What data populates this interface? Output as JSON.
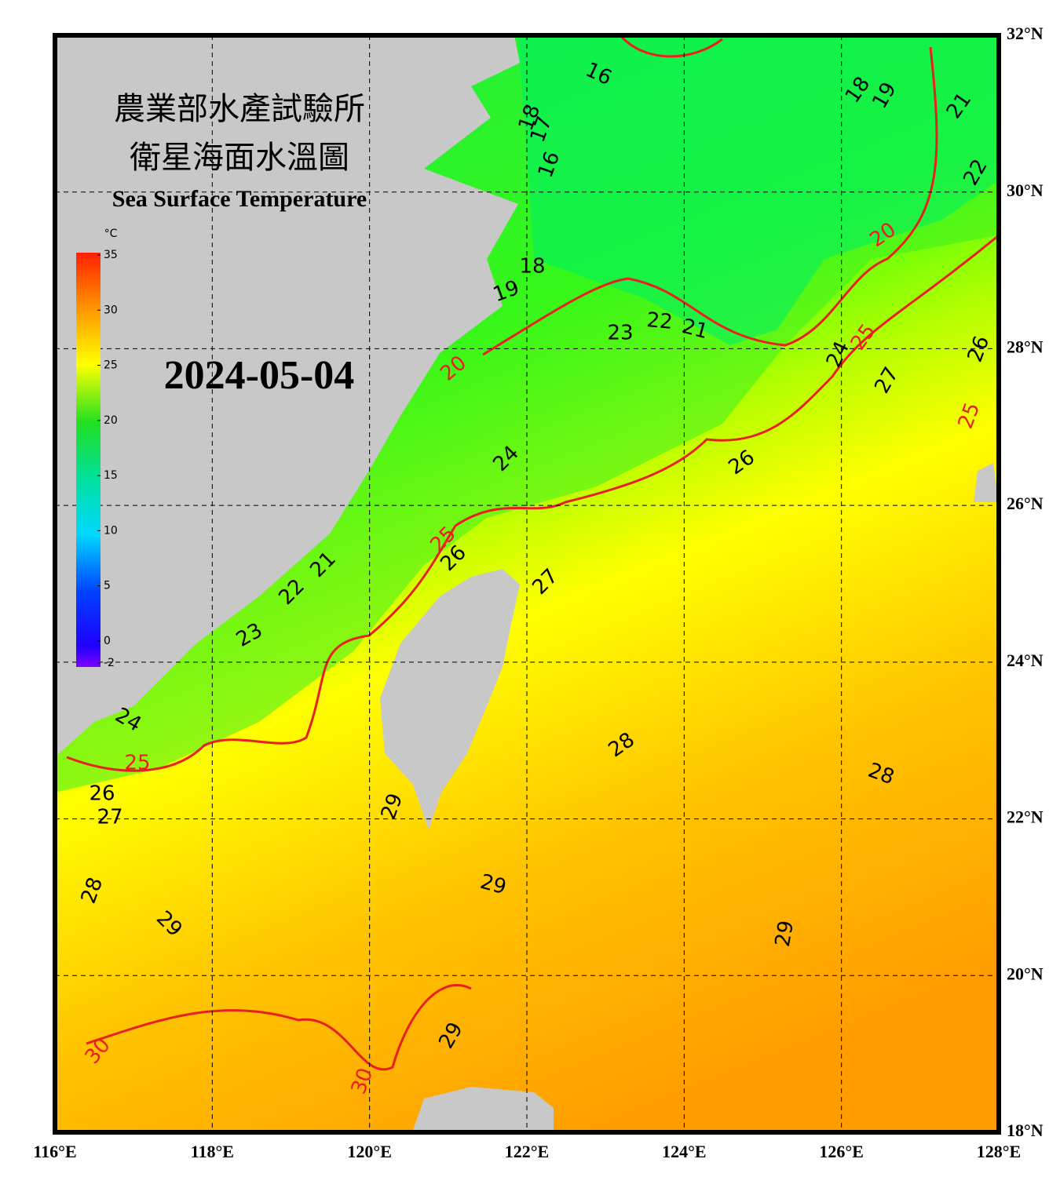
{
  "map": {
    "title_zh": [
      "農業部水產試驗所",
      "衛星海面水溫圖"
    ],
    "title_en": "Sea Surface Temperature",
    "date": "2024-05-04",
    "colorbar": {
      "unit": "°C",
      "ticks": [
        35,
        30,
        25,
        20,
        15,
        10,
        5,
        0,
        -2
      ]
    },
    "xticks": [
      {
        "value": 116,
        "label": "116°E"
      },
      {
        "value": 118,
        "label": "118°E"
      },
      {
        "value": 120,
        "label": "120°E"
      },
      {
        "value": 122,
        "label": "122°E"
      },
      {
        "value": 124,
        "label": "124°E"
      },
      {
        "value": 126,
        "label": "126°E"
      },
      {
        "value": 128,
        "label": "128°E"
      }
    ],
    "yticks": [
      {
        "value": 32,
        "label": "32°N"
      },
      {
        "value": 30,
        "label": "30°N"
      },
      {
        "value": 28,
        "label": "28°N"
      },
      {
        "value": 26,
        "label": "26°N"
      },
      {
        "value": 24,
        "label": "24°N"
      },
      {
        "value": 22,
        "label": "22°N"
      },
      {
        "value": 20,
        "label": "20°N"
      },
      {
        "value": 18,
        "label": "18°N"
      }
    ],
    "contour_labels": [
      16,
      18,
      19,
      21,
      22,
      18,
      17,
      16,
      18,
      19,
      20,
      23,
      22,
      21,
      20,
      24,
      25,
      26,
      27,
      25,
      24,
      26,
      25,
      26,
      21,
      22,
      23,
      27,
      24,
      28,
      25,
      28,
      26,
      27,
      29,
      28,
      29,
      29,
      29,
      30,
      29,
      30
    ]
  }
}
